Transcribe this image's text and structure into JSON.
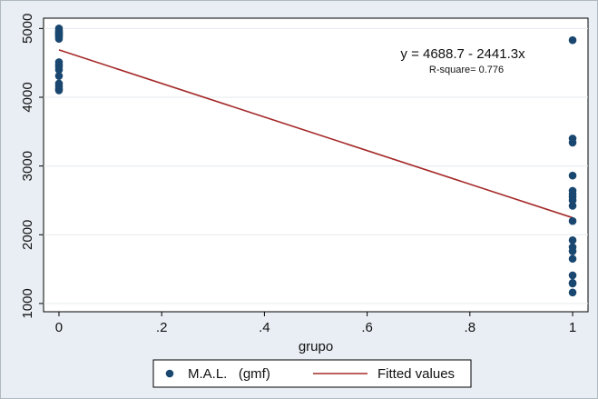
{
  "chart_data": {
    "type": "scatter",
    "title": "",
    "xlabel": "grupo",
    "ylabel": "",
    "xlim": [
      -0.03,
      1.03
    ],
    "ylim": [
      880,
      5150
    ],
    "x_ticks": [
      0,
      0.2,
      0.4,
      0.6,
      0.8,
      1
    ],
    "x_tick_labels": [
      "0",
      ".2",
      ".4",
      ".6",
      ".8",
      "1"
    ],
    "y_ticks": [
      1000,
      2000,
      3000,
      4000,
      5000
    ],
    "y_tick_labels": [
      "1000",
      "2000",
      "3000",
      "4000",
      "5000"
    ],
    "grid": "horizontal",
    "legend": "bottom",
    "series": [
      {
        "name": "M.A.L.   (gmf)",
        "kind": "scatter",
        "color": "#1a476f",
        "x": [
          0,
          0,
          0,
          0,
          0,
          0,
          0,
          0,
          0,
          0,
          0,
          0,
          0,
          0,
          0,
          0,
          0,
          0,
          1,
          1,
          1,
          1,
          1,
          1,
          1,
          1,
          1,
          1,
          1,
          1,
          1,
          1,
          1,
          1,
          1,
          1
        ],
        "y": [
          5000,
          4970,
          4940,
          4910,
          4880,
          4850,
          4510,
          4470,
          4440,
          4400,
          4310,
          4200,
          4160,
          4120,
          4100,
          4950,
          4920,
          4890,
          4830,
          3400,
          3340,
          2860,
          2640,
          2590,
          2550,
          2500,
          2420,
          2200,
          1920,
          1820,
          1760,
          1650,
          1410,
          1300,
          1290,
          1160
        ]
      },
      {
        "name": "Fitted values",
        "kind": "line",
        "color": "#a52a2a",
        "x": [
          0,
          1
        ],
        "y": [
          4688.7,
          2247.4
        ]
      }
    ],
    "annotations": {
      "equation": "y = 4688.7 - 2441.3x",
      "rsquare": "R-square= 0.776"
    }
  }
}
